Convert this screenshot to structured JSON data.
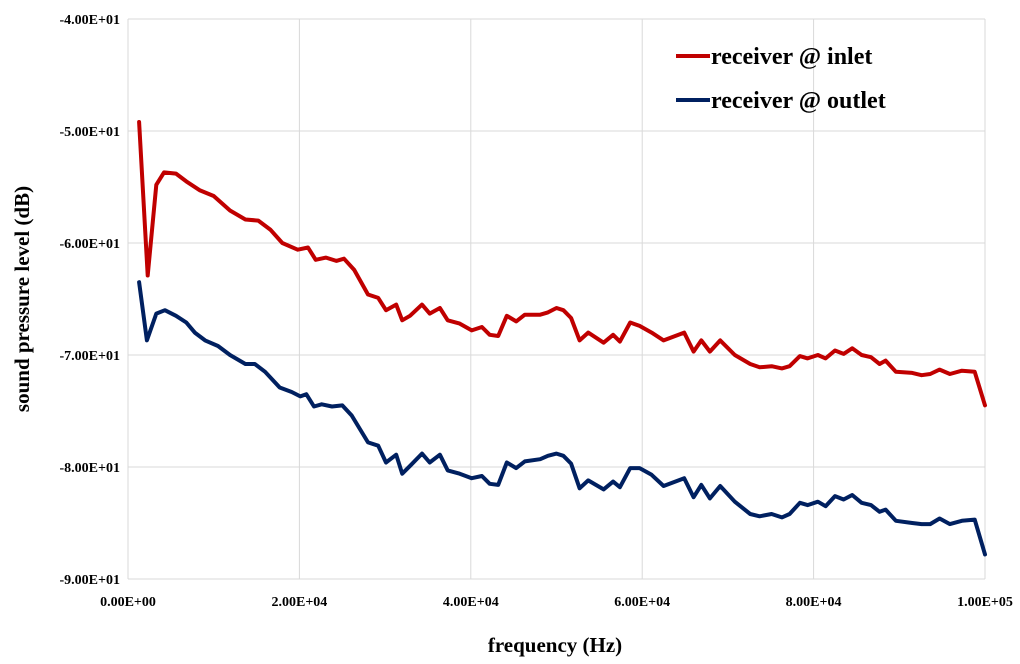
{
  "chart_data": {
    "type": "line",
    "title": "",
    "xlabel": "frequency (Hz)",
    "ylabel": "sound pressure level (dB)",
    "xlim": [
      0,
      100000
    ],
    "ylim": [
      -90,
      -40
    ],
    "grid": true,
    "legend_position": "top-right",
    "x_ticks": [
      0,
      20000,
      40000,
      60000,
      80000,
      100000
    ],
    "x_tick_labels": [
      "0.00E+00",
      "2.00E+04",
      "4.00E+04",
      "6.00E+04",
      "8.00E+04",
      "1.00E+05"
    ],
    "y_ticks": [
      -40,
      -50,
      -60,
      -70,
      -80,
      -90
    ],
    "y_tick_labels": [
      "-4.00E+01",
      "-5.00E+01",
      "-6.00E+01",
      "-7.00E+01",
      "-8.00E+01",
      "-9.00E+01"
    ],
    "series": [
      {
        "name": "receiver @ inlet",
        "color": "#c00000",
        "x": [
          1300,
          2300,
          3300,
          4200,
          5600,
          6800,
          8400,
          10000,
          11900,
          13700,
          15200,
          16600,
          18000,
          19800,
          21000,
          21900,
          23100,
          24300,
          25200,
          26400,
          28000,
          29200,
          30100,
          31300,
          32000,
          32900,
          34300,
          35200,
          36400,
          37300,
          38700,
          40100,
          41300,
          42200,
          43200,
          44200,
          45300,
          46300,
          48100,
          49000,
          50000,
          50800,
          51700,
          52700,
          53700,
          55500,
          56600,
          57400,
          58600,
          59700,
          61100,
          62500,
          64900,
          66000,
          66900,
          67900,
          69100,
          70800,
          72600,
          73700,
          75100,
          76300,
          77200,
          78400,
          79300,
          80500,
          81400,
          82500,
          83500,
          84500,
          85600,
          86700,
          87700,
          88400,
          89600,
          91500,
          92600,
          93600,
          94700,
          95900,
          97300,
          98800,
          100000
        ],
        "y": [
          -49.2,
          -62.9,
          -54.8,
          -53.7,
          -53.8,
          -54.5,
          -55.3,
          -55.8,
          -57.1,
          -57.9,
          -58.0,
          -58.8,
          -60.0,
          -60.6,
          -60.4,
          -61.5,
          -61.3,
          -61.6,
          -61.4,
          -62.4,
          -64.6,
          -64.9,
          -66.0,
          -65.5,
          -66.9,
          -66.5,
          -65.5,
          -66.3,
          -65.8,
          -66.9,
          -67.2,
          -67.8,
          -67.5,
          -68.2,
          -68.3,
          -66.5,
          -67.0,
          -66.4,
          -66.4,
          -66.2,
          -65.8,
          -66.0,
          -66.7,
          -68.7,
          -68.0,
          -68.9,
          -68.2,
          -68.8,
          -67.1,
          -67.4,
          -68.0,
          -68.7,
          -68.0,
          -69.7,
          -68.7,
          -69.7,
          -68.7,
          -70.0,
          -70.8,
          -71.1,
          -71.0,
          -71.2,
          -71.0,
          -70.1,
          -70.3,
          -70.0,
          -70.3,
          -69.6,
          -69.9,
          -69.4,
          -70.0,
          -70.2,
          -70.8,
          -70.5,
          -71.5,
          -71.6,
          -71.8,
          -71.7,
          -71.3,
          -71.7,
          -71.4,
          -71.5,
          -74.5
        ]
      },
      {
        "name": "receiver @ outlet",
        "color": "#002060",
        "x": [
          1300,
          2200,
          3300,
          4300,
          5600,
          6800,
          7800,
          9000,
          10500,
          11900,
          13700,
          14800,
          16000,
          17700,
          19100,
          20100,
          20800,
          21700,
          22600,
          23800,
          25000,
          26100,
          28000,
          29200,
          30100,
          31300,
          32000,
          32900,
          34300,
          35200,
          36400,
          37300,
          38700,
          40100,
          41300,
          42200,
          43200,
          44200,
          45300,
          46300,
          48100,
          49000,
          50000,
          50800,
          51700,
          52700,
          53700,
          55500,
          56600,
          57400,
          58600,
          59700,
          61100,
          62500,
          64900,
          66000,
          66900,
          67900,
          69100,
          70800,
          72600,
          73700,
          75100,
          76300,
          77200,
          78400,
          79300,
          80500,
          81400,
          82500,
          83500,
          84500,
          85600,
          86700,
          87700,
          88400,
          89600,
          91500,
          92600,
          93600,
          94700,
          95900,
          97300,
          98800,
          100000
        ],
        "y": [
          -63.5,
          -68.7,
          -66.3,
          -66.0,
          -66.5,
          -67.1,
          -68.0,
          -68.7,
          -69.2,
          -70.0,
          -70.8,
          -70.8,
          -71.5,
          -72.9,
          -73.3,
          -73.7,
          -73.5,
          -74.6,
          -74.4,
          -74.6,
          -74.5,
          -75.4,
          -77.8,
          -78.1,
          -79.6,
          -78.9,
          -80.6,
          -79.9,
          -78.8,
          -79.6,
          -78.9,
          -80.3,
          -80.6,
          -81.0,
          -80.8,
          -81.5,
          -81.6,
          -79.6,
          -80.1,
          -79.5,
          -79.3,
          -79.0,
          -78.8,
          -79.0,
          -79.7,
          -81.9,
          -81.2,
          -82.0,
          -81.3,
          -81.8,
          -80.1,
          -80.1,
          -80.7,
          -81.7,
          -81.0,
          -82.7,
          -81.6,
          -82.8,
          -81.7,
          -83.1,
          -84.2,
          -84.4,
          -84.2,
          -84.5,
          -84.2,
          -83.2,
          -83.4,
          -83.1,
          -83.5,
          -82.6,
          -82.9,
          -82.5,
          -83.2,
          -83.4,
          -84.0,
          -83.8,
          -84.8,
          -85.0,
          -85.1,
          -85.1,
          -84.6,
          -85.1,
          -84.8,
          -84.7,
          -87.8
        ]
      }
    ]
  }
}
